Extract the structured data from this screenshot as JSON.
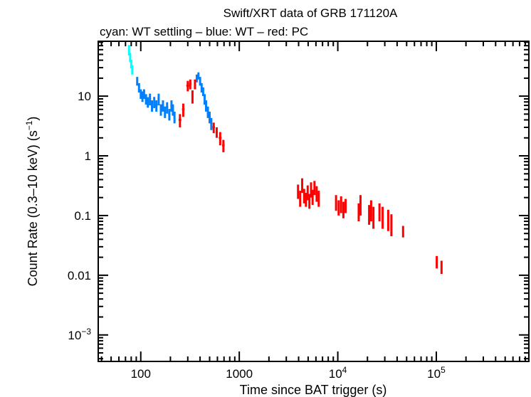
{
  "chart_data": {
    "type": "scatter",
    "title": "Swift/XRT data of GRB 171120A",
    "subtitle": "cyan: WT settling – blue: WT – red: PC",
    "xlabel": "Time since BAT trigger (s)",
    "ylabel": "Count Rate (0.3–10 keV) (s",
    "ylabel_sup": "−1",
    "ylabel_end": ")",
    "x_scale": "log",
    "y_scale": "log",
    "xlim": [
      37,
      870000
    ],
    "ylim": [
      0.00036,
      83
    ],
    "grid": false,
    "x_ticks": [
      {
        "value": 100,
        "label": "100"
      },
      {
        "value": 1000,
        "label": "1000"
      },
      {
        "value": 10000,
        "label": "10",
        "sup": "4"
      },
      {
        "value": 100000,
        "label": "10",
        "sup": "5"
      }
    ],
    "y_ticks": [
      {
        "value": 10,
        "label": "10"
      },
      {
        "value": 1,
        "label": "1"
      },
      {
        "value": 0.1,
        "label": "0.1"
      },
      {
        "value": 0.01,
        "label": "0.01"
      },
      {
        "value": 0.001,
        "label": "10",
        "sup": "−3"
      }
    ],
    "series": [
      {
        "name": "WT settling",
        "color": "#00ffff",
        "points_format": [
          "t",
          "dt",
          "rate",
          "err"
        ],
        "points": [
          [
            76,
            1,
            60,
            12
          ],
          [
            78,
            1,
            45,
            8
          ],
          [
            80,
            1,
            35,
            6
          ],
          [
            82,
            1,
            28,
            5
          ]
        ]
      },
      {
        "name": "WT",
        "color": "#0080ff",
        "points_format": [
          "t",
          "dt",
          "rate",
          "err"
        ],
        "points": [
          [
            92,
            2,
            18,
            3
          ],
          [
            96,
            2,
            14,
            2.5
          ],
          [
            100,
            2,
            11,
            2
          ],
          [
            104,
            2,
            10,
            2
          ],
          [
            108,
            2,
            11,
            2
          ],
          [
            113,
            3,
            9,
            1.8
          ],
          [
            118,
            3,
            8,
            1.6
          ],
          [
            124,
            3,
            9,
            2
          ],
          [
            130,
            3,
            7,
            1.5
          ],
          [
            137,
            3,
            8,
            1.7
          ],
          [
            144,
            4,
            7,
            1.5
          ],
          [
            152,
            4,
            9,
            2
          ],
          [
            160,
            4,
            6,
            1.3
          ],
          [
            168,
            4,
            7,
            1.5
          ],
          [
            176,
            4,
            5.5,
            1.2
          ],
          [
            185,
            5,
            6.5,
            1.4
          ],
          [
            195,
            5,
            5,
            1.1
          ],
          [
            205,
            5,
            7,
            1.5
          ],
          [
            212,
            5,
            6,
            1.3
          ],
          [
            220,
            5,
            4.5,
            1
          ],
          [
            370,
            8,
            20,
            3
          ],
          [
            385,
            8,
            22,
            3
          ],
          [
            400,
            8,
            18,
            3
          ],
          [
            415,
            8,
            14,
            2.5
          ],
          [
            430,
            8,
            12,
            2
          ],
          [
            445,
            8,
            9,
            1.8
          ],
          [
            460,
            8,
            7,
            1.5
          ],
          [
            480,
            10,
            5.5,
            1.2
          ],
          [
            500,
            10,
            4.5,
            1
          ],
          [
            520,
            10,
            3.5,
            0.8
          ]
        ]
      },
      {
        "name": "PC",
        "color": "#ff0000",
        "points_format": [
          "t",
          "dt",
          "rate",
          "err"
        ],
        "points": [
          [
            250,
            8,
            4,
            1
          ],
          [
            270,
            8,
            6,
            1.5
          ],
          [
            300,
            10,
            15,
            3
          ],
          [
            318,
            8,
            16,
            3
          ],
          [
            335,
            6,
            10,
            2.5
          ],
          [
            355,
            6,
            16,
            3
          ],
          [
            550,
            15,
            3,
            0.6
          ],
          [
            590,
            15,
            2.5,
            0.5
          ],
          [
            640,
            20,
            2,
            0.5
          ],
          [
            690,
            20,
            1.5,
            0.35
          ],
          [
            3950,
            80,
            0.26,
            0.07
          ],
          [
            4150,
            80,
            0.2,
            0.06
          ],
          [
            4350,
            80,
            0.33,
            0.09
          ],
          [
            4550,
            80,
            0.22,
            0.06
          ],
          [
            4750,
            80,
            0.19,
            0.05
          ],
          [
            4950,
            80,
            0.25,
            0.07
          ],
          [
            5150,
            80,
            0.18,
            0.05
          ],
          [
            5350,
            80,
            0.28,
            0.08
          ],
          [
            5550,
            80,
            0.21,
            0.06
          ],
          [
            5800,
            100,
            0.3,
            0.08
          ],
          [
            6100,
            100,
            0.24,
            0.07
          ],
          [
            6400,
            100,
            0.2,
            0.06
          ],
          [
            9600,
            150,
            0.17,
            0.05
          ],
          [
            10200,
            150,
            0.14,
            0.04
          ],
          [
            10800,
            150,
            0.16,
            0.05
          ],
          [
            11400,
            150,
            0.13,
            0.04
          ],
          [
            12000,
            150,
            0.15,
            0.04
          ],
          [
            16300,
            200,
            0.12,
            0.04
          ],
          [
            17000,
            200,
            0.16,
            0.06
          ],
          [
            20800,
            250,
            0.11,
            0.04
          ],
          [
            21800,
            250,
            0.13,
            0.05
          ],
          [
            23000,
            250,
            0.1,
            0.04
          ],
          [
            26500,
            300,
            0.12,
            0.04
          ],
          [
            28500,
            300,
            0.1,
            0.04
          ],
          [
            32500,
            400,
            0.09,
            0.035
          ],
          [
            35000,
            400,
            0.075,
            0.03
          ],
          [
            46000,
            500,
            0.055,
            0.012
          ],
          [
            101000,
            1500,
            0.017,
            0.004
          ],
          [
            113000,
            1500,
            0.014,
            0.0035
          ]
        ]
      }
    ]
  }
}
